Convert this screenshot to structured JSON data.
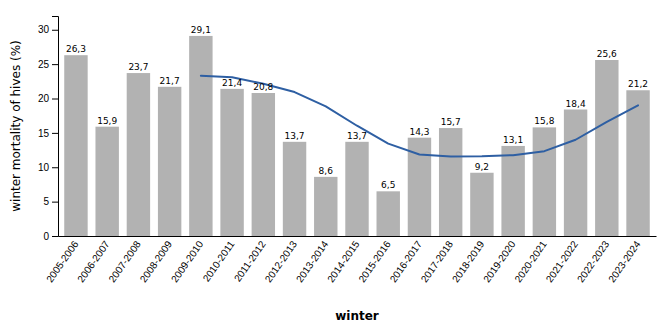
{
  "chart_data": {
    "type": "bar",
    "xlabel": "winter",
    "ylabel": "winter mortality of hives (%)",
    "categories": [
      "2005-2006",
      "2006-2007",
      "2007-2008",
      "2008-2009",
      "2009-2010",
      "2010-2011",
      "2011-2012",
      "2012-2013",
      "2013-2014",
      "2014-2015",
      "2015-2016",
      "2016-2017",
      "2017-2018",
      "2018-2019",
      "2019-2020",
      "2020-2021",
      "2021-2022",
      "2022-2023",
      "2023-2024"
    ],
    "series": [
      {
        "type": "bar",
        "color": "#b2b2b2",
        "data_labels": true,
        "values": [
          26.3,
          15.9,
          23.7,
          21.7,
          29.1,
          21.4,
          20.8,
          13.7,
          8.6,
          13.7,
          6.5,
          14.3,
          15.7,
          9.2,
          13.1,
          15.8,
          18.4,
          25.6,
          21.2
        ],
        "value_labels": [
          "26,3",
          "15,9",
          "23,7",
          "21,7",
          "29,1",
          "21,4",
          "20,8",
          "13,7",
          "8,6",
          "13,7",
          "6,5",
          "14,3",
          "15,7",
          "9,2",
          "13,1",
          "15,8",
          "18,4",
          "25,6",
          "21,2"
        ]
      },
      {
        "type": "line",
        "color": "#2e5fa3",
        "values": [
          null,
          null,
          null,
          null,
          23.3,
          23.1,
          22.14,
          20.94,
          18.86,
          16.04,
          13.44,
          11.86,
          11.56,
          11.6,
          11.76,
          12.34,
          14.0,
          16.6,
          19.0
        ]
      }
    ],
    "ylim": [
      0,
      32
    ],
    "yticks": [
      0,
      5,
      10,
      15,
      20,
      25,
      30
    ],
    "grid": false
  }
}
